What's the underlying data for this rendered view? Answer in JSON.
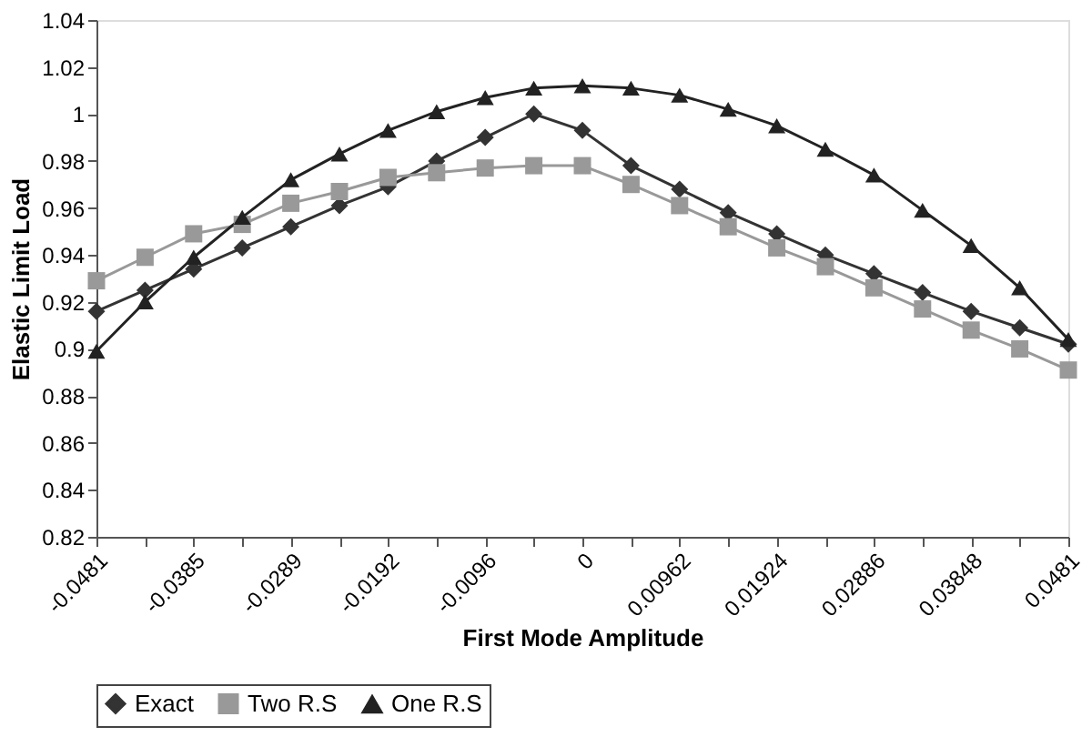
{
  "chart_data": {
    "type": "line",
    "xlabel": "First Mode Amplitude",
    "ylabel": "Elastic Limit Load",
    "categories": [
      "-0.0481",
      null,
      "-0.0385",
      null,
      "-0.0289",
      null,
      "-0.0192",
      null,
      "-0.0096",
      null,
      "0",
      null,
      "0.00962",
      null,
      "0.01924",
      null,
      "0.02886",
      null,
      "0.03848",
      null,
      "0.0481"
    ],
    "series": [
      {
        "name": "Exact",
        "color": "#333333",
        "marker": "diamond",
        "values": [
          0.916,
          0.925,
          0.934,
          0.943,
          0.952,
          0.961,
          0.969,
          0.98,
          0.99,
          1.0,
          0.993,
          0.978,
          0.968,
          0.958,
          0.949,
          0.94,
          0.932,
          0.924,
          0.916,
          0.909,
          0.902
        ]
      },
      {
        "name": "Two R.S",
        "color": "#999999",
        "marker": "square",
        "values": [
          0.929,
          0.939,
          0.949,
          0.953,
          0.962,
          0.967,
          0.973,
          0.975,
          0.977,
          0.978,
          0.978,
          0.97,
          0.961,
          0.952,
          0.943,
          0.935,
          0.926,
          0.917,
          0.908,
          0.9,
          0.891
        ]
      },
      {
        "name": "One R.S",
        "color": "#222222",
        "marker": "triangle",
        "values": [
          0.899,
          0.92,
          0.939,
          0.956,
          0.972,
          0.983,
          0.993,
          1.001,
          1.007,
          1.011,
          1.012,
          1.011,
          1.008,
          1.002,
          0.995,
          0.985,
          0.974,
          0.959,
          0.944,
          0.926,
          0.904
        ]
      }
    ],
    "ylim": [
      0.82,
      1.04
    ],
    "yticks": [
      0.82,
      0.84,
      0.86,
      0.88,
      0.9,
      0.92,
      0.94,
      0.96,
      0.98,
      1,
      1.02,
      1.04
    ],
    "grid": false,
    "legend": "bottom",
    "line_style": "solid"
  }
}
